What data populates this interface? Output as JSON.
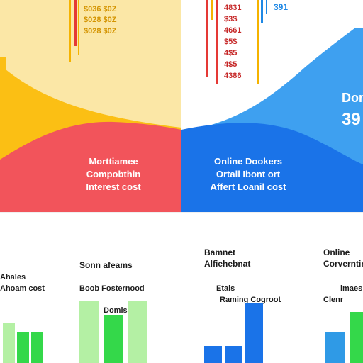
{
  "colors": {
    "yellow": "#fbbf14",
    "cream": "#fbe7a6",
    "red": "#f2545b",
    "blue": "#1a73e8",
    "sky": "#2f9ae6",
    "green": "#34d84a",
    "light_green": "#b4f0a4",
    "tick_red": "#e53935",
    "tick_yellow": "#f5b300",
    "tick_blue": "#1e88e5",
    "text_dark": "#1c1c1c",
    "text_yellow": "#d49400",
    "text_red": "#c62828"
  },
  "panels": {
    "left": {
      "lines": [
        "Morttiamee",
        "Compobthin",
        "Interest cost"
      ]
    },
    "right": {
      "lines": [
        "Online Dookers",
        "Ortall Ibont ort",
        "Affert Loanil cost"
      ],
      "side_label": "Don",
      "side_value": "39"
    }
  },
  "top_labels": {
    "left_stack": [
      "$036 $0Z",
      "$028 $0Z",
      "$028 $0Z"
    ],
    "center_stack": [
      "4831",
      "$3$",
      "4661",
      "$5$",
      "4$5",
      "4$5",
      "4386"
    ],
    "top_right": "391"
  },
  "bottom_labels": {
    "far_left_title": "Ahales",
    "far_left_sub": "Ahoam cost",
    "g1_title": "Sonn afeams",
    "g1_sub": "Boob  Fosternood",
    "g1_inner": "Domis",
    "g2_title": "Bamnet",
    "g2_sub": "Alfiehebnat",
    "g2_caption": "Etals",
    "g2_inner": "Raming Cogroot",
    "g3_title": "Online",
    "g3_sub": "Corverntim",
    "g3_caption": "imaes",
    "g3_inner": "Clenr"
  },
  "chart_data": {
    "type": "bar",
    "groups": [
      {
        "label": "Ahales",
        "bars": [
          {
            "value": 14,
            "color": "light_green"
          },
          {
            "value": 11,
            "color": "green"
          },
          {
            "value": 11,
            "color": "green"
          }
        ]
      },
      {
        "label": "Sonn afeams",
        "bars": [
          {
            "value": 22,
            "color": "light_green"
          },
          {
            "value": 17,
            "color": "green"
          },
          {
            "value": 22,
            "color": "light_green"
          }
        ]
      },
      {
        "label": "Bamnet",
        "bars": [
          {
            "value": 6,
            "color": "blue"
          },
          {
            "value": 6,
            "color": "blue"
          },
          {
            "value": 21,
            "color": "blue"
          }
        ]
      },
      {
        "label": "Online",
        "bars": [
          {
            "value": 11,
            "color": "sky"
          },
          {
            "value": 18,
            "color": "green"
          }
        ]
      }
    ]
  }
}
